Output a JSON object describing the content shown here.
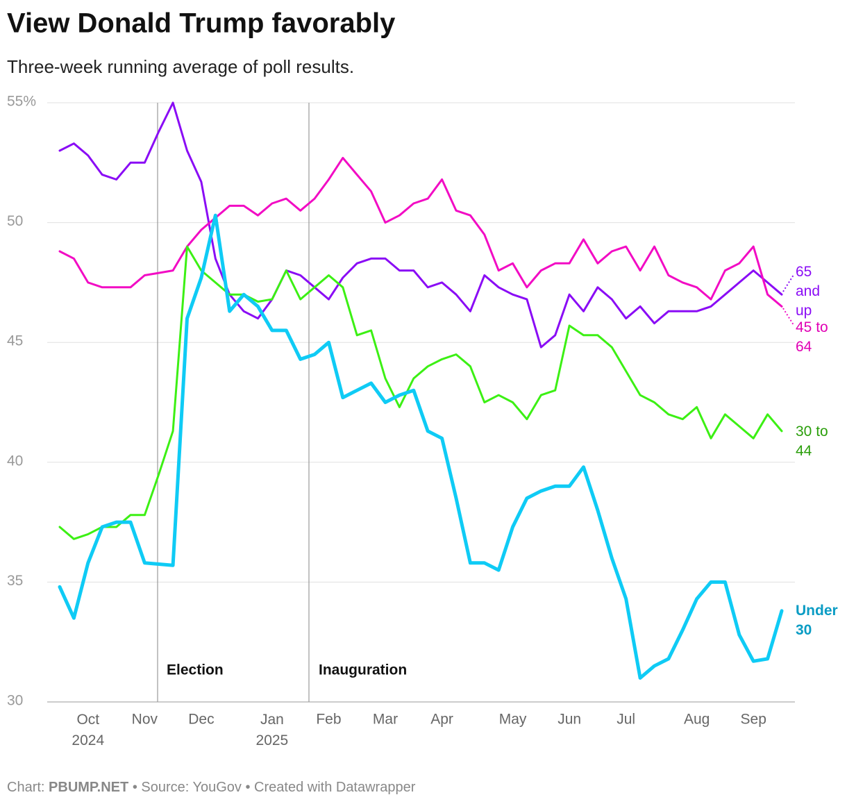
{
  "chart_data": {
    "type": "line",
    "title": "View Donald Trump favorably",
    "subtitle": "Three-week running average of poll results.",
    "categories": [
      null,
      null,
      "Oct 2024",
      null,
      null,
      null,
      "Nov",
      null,
      null,
      null,
      "Dec",
      null,
      null,
      null,
      null,
      "Jan 2025",
      null,
      null,
      null,
      "Feb",
      null,
      null,
      null,
      "Mar",
      null,
      null,
      null,
      "Apr",
      null,
      null,
      null,
      null,
      "May",
      null,
      null,
      null,
      "Jun",
      null,
      null,
      null,
      "Jul",
      null,
      null,
      null,
      null,
      "Aug",
      null,
      null,
      null,
      "Sep",
      null,
      null
    ],
    "series": [
      {
        "name": "Under 30",
        "color": "#0fcbf5",
        "values": [
          34.8,
          33.5,
          35.8,
          37.3,
          37.5,
          37.5,
          35.8,
          35.75,
          35.7,
          46.0,
          47.7,
          50.3,
          46.3,
          47.0,
          46.5,
          45.5,
          45.5,
          44.3,
          44.5,
          45.0,
          42.7,
          43.0,
          43.3,
          42.5,
          42.8,
          43.0,
          41.3,
          41.0,
          38.5,
          35.8,
          35.8,
          35.5,
          37.3,
          38.5,
          38.8,
          39.0,
          39.0,
          39.8,
          38.0,
          36.0,
          34.3,
          31.0,
          31.5,
          31.8,
          33.0,
          34.3,
          35.0,
          35.0,
          32.8,
          31.7,
          31.8,
          33.8
        ]
      },
      {
        "name": "30 to 44",
        "color": "#3cf014",
        "values": [
          37.3,
          36.8,
          37.0,
          37.3,
          37.3,
          37.8,
          37.8,
          39.5,
          41.3,
          49.0,
          48.0,
          47.5,
          47.0,
          47.0,
          46.7,
          46.8,
          48.0,
          46.8,
          47.3,
          47.8,
          47.3,
          45.3,
          45.5,
          43.5,
          42.3,
          43.5,
          44.0,
          44.3,
          44.5,
          44.0,
          42.5,
          42.8,
          42.5,
          41.8,
          42.8,
          43.0,
          45.7,
          45.3,
          45.3,
          44.8,
          43.8,
          42.8,
          42.5,
          42.0,
          41.8,
          42.3,
          41.0,
          42.0,
          41.5,
          41.0,
          42.0,
          41.3
        ]
      },
      {
        "name": "45 to 64",
        "color": "#f20cc4",
        "values": [
          48.8,
          48.5,
          47.5,
          47.3,
          47.3,
          47.3,
          47.8,
          47.9,
          48.0,
          49.0,
          49.7,
          50.2,
          50.7,
          50.7,
          50.3,
          50.8,
          51.0,
          50.5,
          51.0,
          51.8,
          52.7,
          52.0,
          51.3,
          50.0,
          50.3,
          50.8,
          51.0,
          51.8,
          50.5,
          50.3,
          49.5,
          48.0,
          48.3,
          47.3,
          48.0,
          48.3,
          48.3,
          49.3,
          48.3,
          48.8,
          49.0,
          48.0,
          49.0,
          47.8,
          47.5,
          47.3,
          46.8,
          48.0,
          48.3,
          49.0,
          47.0,
          46.5
        ]
      },
      {
        "name": "65 and up",
        "color": "#8a0cf5",
        "values": [
          53.0,
          53.3,
          52.8,
          52.0,
          51.8,
          52.5,
          52.5,
          53.8,
          55.0,
          53.0,
          51.7,
          48.5,
          47.0,
          46.3,
          46.0,
          46.8,
          48.0,
          47.8,
          47.3,
          46.8,
          47.7,
          48.3,
          48.5,
          48.5,
          48.0,
          48.0,
          47.3,
          47.5,
          47.0,
          46.3,
          47.8,
          47.3,
          47.0,
          46.8,
          44.8,
          45.3,
          47.0,
          46.3,
          47.3,
          46.8,
          46.0,
          46.5,
          45.8,
          46.3,
          46.3,
          46.3,
          46.5,
          47.0,
          47.5,
          48.0,
          47.5,
          47.0
        ]
      }
    ],
    "label_colors": [
      "#0a9cc4",
      "#2a9e0a",
      "#e000b4",
      "#8a0cf5"
    ],
    "ylim": [
      30,
      55
    ],
    "yticks": [
      30,
      35,
      40,
      45,
      50,
      {
        "value": 55,
        "label": "55%"
      }
    ],
    "grid": true,
    "annotations": [
      "Election",
      "Inauguration"
    ],
    "footer": {
      "credit_label": "Chart:",
      "credit": "PBUMP.NET",
      "rest": "• Source: YouGov • Created with Datawrapper"
    }
  }
}
